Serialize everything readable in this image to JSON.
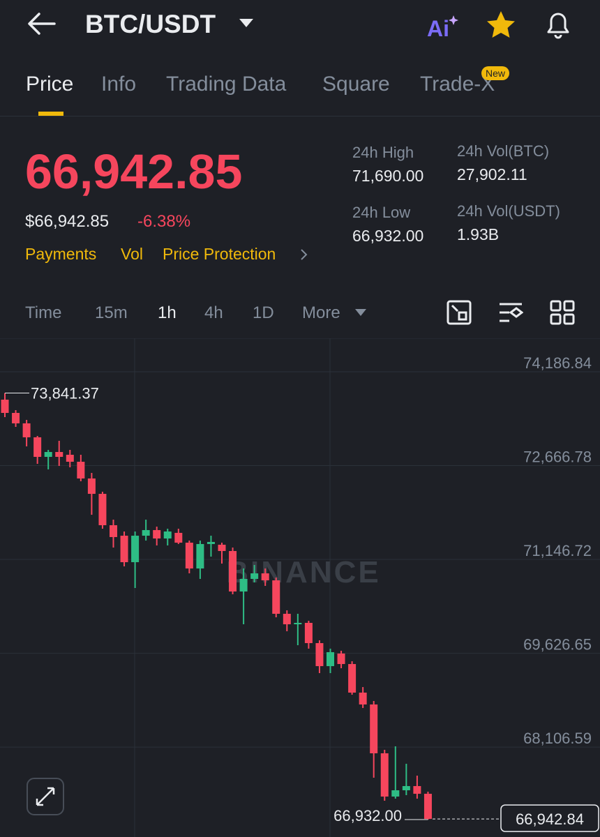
{
  "header": {
    "pair": "BTC/USDT"
  },
  "tabs": [
    "Price",
    "Info",
    "Trading Data",
    "Square",
    "Trade-X"
  ],
  "tab_badge": "New",
  "ticker": {
    "last_price": "66,942.85",
    "usd_price": "$66,942.85",
    "change": "-6.38%",
    "stats": [
      {
        "label": "24h High",
        "value": "71,690.00"
      },
      {
        "label": "24h Vol(BTC)",
        "value": "27,902.11"
      },
      {
        "label": "24h Low",
        "value": "66,932.00"
      },
      {
        "label": "24h Vol(USDT)",
        "value": "1.93B"
      }
    ]
  },
  "links": [
    "Payments",
    "Vol",
    "Price Protection"
  ],
  "intervals": [
    "Time",
    "15m",
    "1h",
    "4h",
    "1D",
    "More"
  ],
  "watermark": "BINANCE",
  "chart_data": {
    "type": "candlestick",
    "up_color": "#2ebd85",
    "down_color": "#f6465d",
    "grid": true,
    "ylim": [
      66650,
      74729
    ],
    "yticks": [
      {
        "value": 74186.84,
        "label": "74,186.84"
      },
      {
        "value": 72666.78,
        "label": "72,666.78"
      },
      {
        "value": 71146.72,
        "label": "71,146.72"
      },
      {
        "value": 69626.65,
        "label": "69,626.65"
      },
      {
        "value": 68106.59,
        "label": "68,106.59"
      }
    ],
    "max_label": {
      "value": 73841.37,
      "label": "73,841.37"
    },
    "min_label": {
      "value": 66932.0,
      "label": "66,932.00"
    },
    "last_price_label": {
      "value": 66942.84,
      "label": "66,942.84"
    },
    "open": [
      73735,
      73520,
      73351,
      73125,
      72808,
      72887,
      72842,
      72729,
      72458,
      72209,
      71701,
      71531,
      71102,
      71531,
      71622,
      71486,
      71577,
      71418,
      71000,
      71396,
      71385,
      71283,
      70627,
      70831,
      70921,
      70808,
      70266,
      70096,
      70119,
      69791,
      69418,
      69622,
      69452,
      68989,
      68797,
      68006,
      67305,
      67407,
      67475,
      67350
    ],
    "close": [
      73520,
      73351,
      73125,
      72808,
      72887,
      72808,
      72729,
      72458,
      72209,
      71701,
      71509,
      71102,
      71531,
      71622,
      71486,
      71599,
      71418,
      71000,
      71396,
      71430,
      71283,
      70627,
      70831,
      70921,
      70808,
      70266,
      70096,
      70119,
      69791,
      69418,
      69644,
      69452,
      68989,
      68797,
      68006,
      67305,
      67407,
      67475,
      67350,
      66942.84
    ],
    "high": [
      73841,
      73565,
      73407,
      73147,
      72921,
      73068,
      72921,
      72842,
      72548,
      72243,
      71791,
      71599,
      71599,
      71791,
      71678,
      71644,
      71644,
      71452,
      71452,
      71531,
      71418,
      71339,
      71000,
      71057,
      71000,
      70853,
      70322,
      70266,
      70153,
      69836,
      69701,
      69667,
      69497,
      69079,
      68853,
      68062,
      68119,
      67836,
      67644,
      67384
    ],
    "low": [
      73452,
      73294,
      72978,
      72695,
      72605,
      72661,
      72639,
      72413,
      71870,
      71644,
      71339,
      71034,
      70684,
      71452,
      71373,
      71373,
      71396,
      70921,
      70831,
      71192,
      71079,
      70582,
      70096,
      70774,
      70718,
      70209,
      69983,
      69757,
      69701,
      69305,
      69305,
      69384,
      68955,
      68740,
      67610,
      67237,
      67271,
      67328,
      67271,
      66932
    ]
  }
}
